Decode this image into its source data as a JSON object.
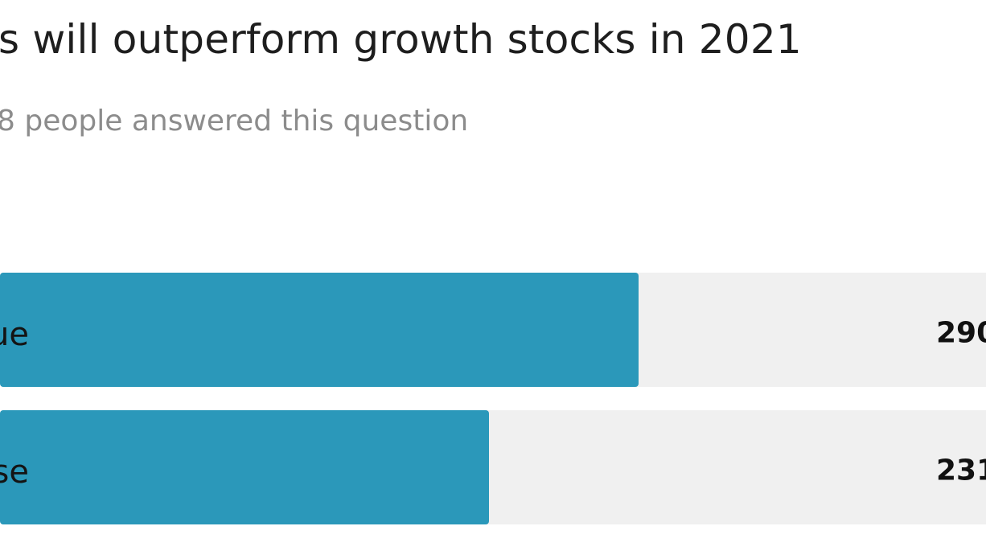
{
  "poll": {
    "question": "s will outperform growth stocks in 2021",
    "answered_text": "8 people answered this question"
  },
  "colors": {
    "bar_fill": "#2b98ba",
    "bar_track": "#f0f0f0",
    "muted_text": "#8c8c8c"
  },
  "chart_data": {
    "type": "bar",
    "orientation": "horizontal",
    "title": "s will outperform growth stocks in 2021",
    "subtitle": "8 people answered this question",
    "categories": [
      "ue",
      "se"
    ],
    "count_labels": [
      "290",
      "231"
    ],
    "values": [
      290,
      231
    ],
    "fill_fraction": [
      0.648,
      0.496
    ],
    "grid": false,
    "legend": "none"
  }
}
